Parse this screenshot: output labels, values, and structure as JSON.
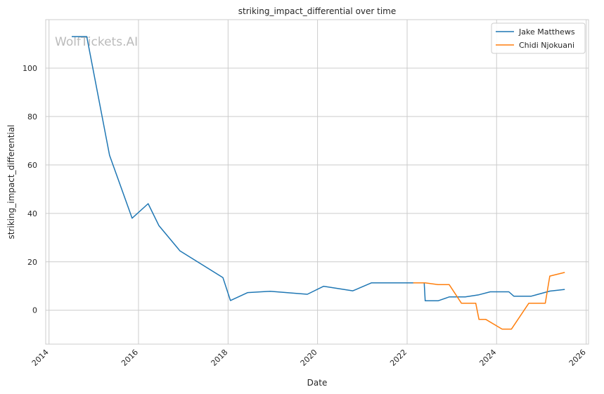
{
  "chart_data": {
    "type": "line",
    "title": "striking_impact_differential over time",
    "xlabel": "Date",
    "ylabel": "striking_impact_differential",
    "xlim": [
      "2013-12-05",
      "2026-01-20"
    ],
    "ylim": [
      -14,
      120
    ],
    "x_ticks": [
      "2014",
      "2016",
      "2018",
      "2020",
      "2022",
      "2024",
      "2026"
    ],
    "y_ticks": [
      0,
      20,
      40,
      60,
      80,
      100
    ],
    "grid": true,
    "legend_position": "top-right",
    "watermark": "WolfTickets.AI",
    "colors": {
      "Jake Matthews": "#1f77b4",
      "Chidi Njokuani": "#ff7f0e"
    },
    "series": [
      {
        "name": "Jake Matthews",
        "x": [
          "2014-07-05",
          "2014-11-05",
          "2015-05-10",
          "2015-11-10",
          "2016-03-20",
          "2016-06-15",
          "2016-12-05",
          "2017-11-20",
          "2018-01-20",
          "2018-06-10",
          "2018-12-10",
          "2019-10-10",
          "2020-02-20",
          "2020-10-15",
          "2021-03-15",
          "2022-05-20",
          "2022-05-28",
          "2022-09-10",
          "2022-12-10",
          "2023-04-20",
          "2023-08-10",
          "2023-11-10",
          "2024-04-10",
          "2024-05-20",
          "2024-10-10",
          "2025-03-10",
          "2025-07-10"
        ],
        "y": [
          113,
          113,
          64,
          38,
          44,
          35,
          24.5,
          13.5,
          4,
          7.3,
          7.8,
          6.6,
          9.9,
          8,
          11.3,
          11.3,
          3.9,
          3.9,
          5.5,
          5.5,
          6.4,
          7.6,
          7.6,
          5.8,
          5.8,
          7.9,
          8.6
        ]
      },
      {
        "name": "Chidi Njokuani",
        "x": [
          "2022-02-20",
          "2022-05-28",
          "2022-09-10",
          "2022-12-10",
          "2023-03-20",
          "2023-07-15",
          "2023-08-10",
          "2023-10-05",
          "2024-02-15",
          "2024-05-01",
          "2024-09-20",
          "2025-02-01",
          "2025-03-10",
          "2025-07-10"
        ],
        "y": [
          11.3,
          11.3,
          10.6,
          10.6,
          2.9,
          2.9,
          -3.8,
          -3.8,
          -7.8,
          -7.8,
          2.9,
          2.9,
          14.1,
          15.6
        ]
      }
    ]
  }
}
